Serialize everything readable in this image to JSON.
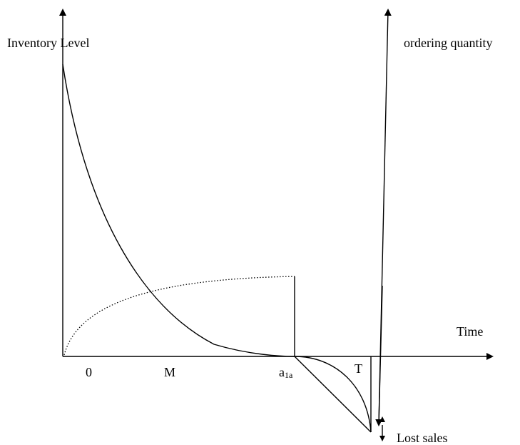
{
  "labels": {
    "y_axis": "Inventory Level",
    "right_axis": "ordering quantity",
    "x_axis": "Time",
    "tick_0": "0",
    "tick_m": "M",
    "tick_a_base": "a",
    "tick_a_sub": "1a",
    "tick_t": "T",
    "lost_sales": "Lost sales"
  }
}
